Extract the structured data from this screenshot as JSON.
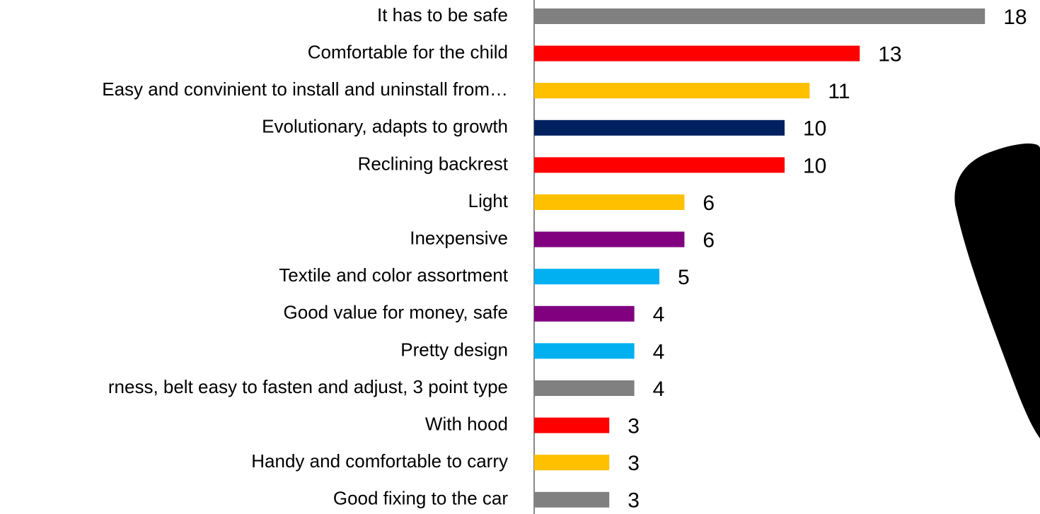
{
  "chart_data": {
    "type": "bar",
    "categories": [
      "It has to be safe",
      "Comfortable for the child",
      "Easy and convinient to install and uninstall from…",
      "Evolutionary, adapts to growth",
      "Reclining backrest",
      "Light",
      "Inexpensive",
      "Textile and color assortment",
      "Good value for money, safe",
      "Pretty design",
      "rness, belt easy to fasten and adjust, 3 point type",
      "With hood",
      "Handy and comfortable to carry",
      "Good fixing to the car"
    ],
    "values": [
      18,
      13,
      11,
      10,
      10,
      6,
      6,
      5,
      4,
      4,
      4,
      3,
      3,
      3
    ],
    "colors": [
      "#808080",
      "#ff0000",
      "#ffc000",
      "#002060",
      "#ff0000",
      "#ffc000",
      "#800080",
      "#00b0f0",
      "#800080",
      "#00b0f0",
      "#808080",
      "#ff0000",
      "#ffc000",
      "#808080"
    ]
  }
}
